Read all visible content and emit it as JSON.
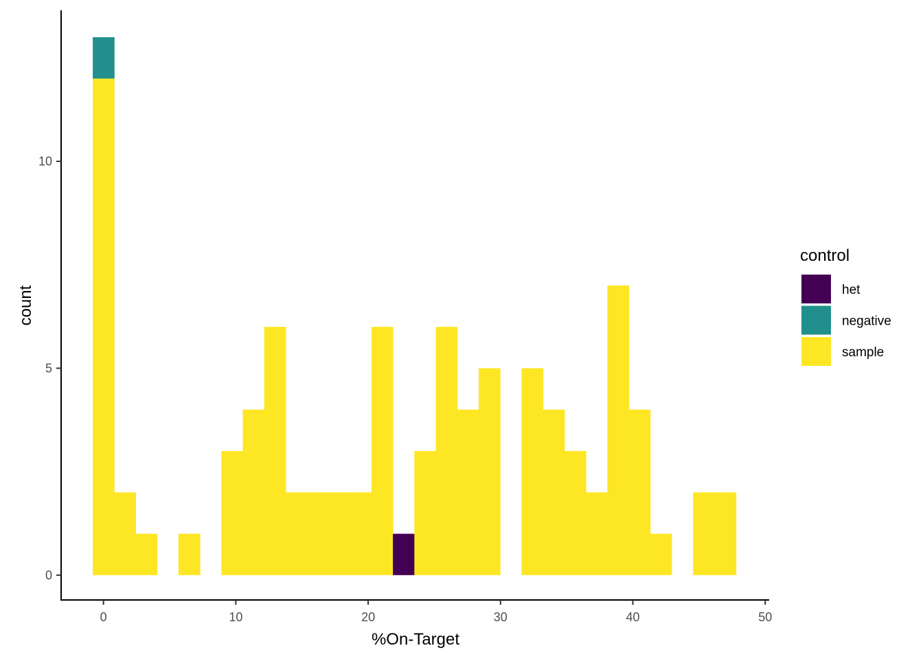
{
  "chart_data": {
    "type": "bar",
    "subtype": "stacked-histogram",
    "xlabel": "%On-Target",
    "ylabel": "count",
    "xlim": [
      -3.2,
      50.3
    ],
    "ylim": [
      -0.6,
      13.65
    ],
    "x_ticks": [
      0,
      10,
      20,
      30,
      40,
      50
    ],
    "y_ticks": [
      0,
      5,
      10
    ],
    "bin_width": 1.62,
    "bin_start": -0.81,
    "grid": false,
    "legend": {
      "title": "control",
      "position": "right",
      "entries": [
        {
          "key": "het",
          "label": "het",
          "color": "#440154"
        },
        {
          "key": "negative",
          "label": "negative",
          "color": "#21908C"
        },
        {
          "key": "sample",
          "label": "sample",
          "color": "#FDE725"
        }
      ]
    },
    "series": [
      {
        "name": "het",
        "color": "#440154",
        "values": [
          0,
          0,
          0,
          0,
          0,
          0,
          0,
          0,
          0,
          0,
          0,
          0,
          0,
          0,
          1,
          0,
          0,
          0,
          0,
          0,
          0,
          0,
          0,
          0,
          0,
          0,
          0,
          0,
          0,
          0
        ]
      },
      {
        "name": "negative",
        "color": "#21908C",
        "values": [
          1,
          0,
          0,
          0,
          0,
          0,
          0,
          0,
          0,
          0,
          0,
          0,
          0,
          0,
          0,
          0,
          0,
          0,
          0,
          0,
          0,
          0,
          0,
          0,
          0,
          0,
          0,
          0,
          0,
          0
        ]
      },
      {
        "name": "sample",
        "color": "#FDE725",
        "values": [
          12,
          2,
          1,
          0,
          1,
          0,
          3,
          4,
          6,
          2,
          2,
          2,
          2,
          6,
          0,
          3,
          6,
          4,
          5,
          0,
          5,
          4,
          3,
          2,
          7,
          4,
          1,
          0,
          2,
          2
        ]
      }
    ]
  }
}
